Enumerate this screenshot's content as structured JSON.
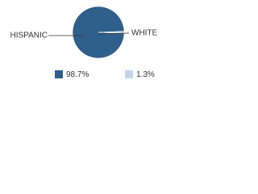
{
  "chart_data": {
    "type": "pie",
    "categories": [
      "HISPANIC",
      "WHITE"
    ],
    "values": [
      98.7,
      1.3
    ],
    "value_labels": [
      "98.7%",
      "1.3%"
    ],
    "colors": [
      "#2f5f8b",
      "#c5d5e5"
    ]
  }
}
